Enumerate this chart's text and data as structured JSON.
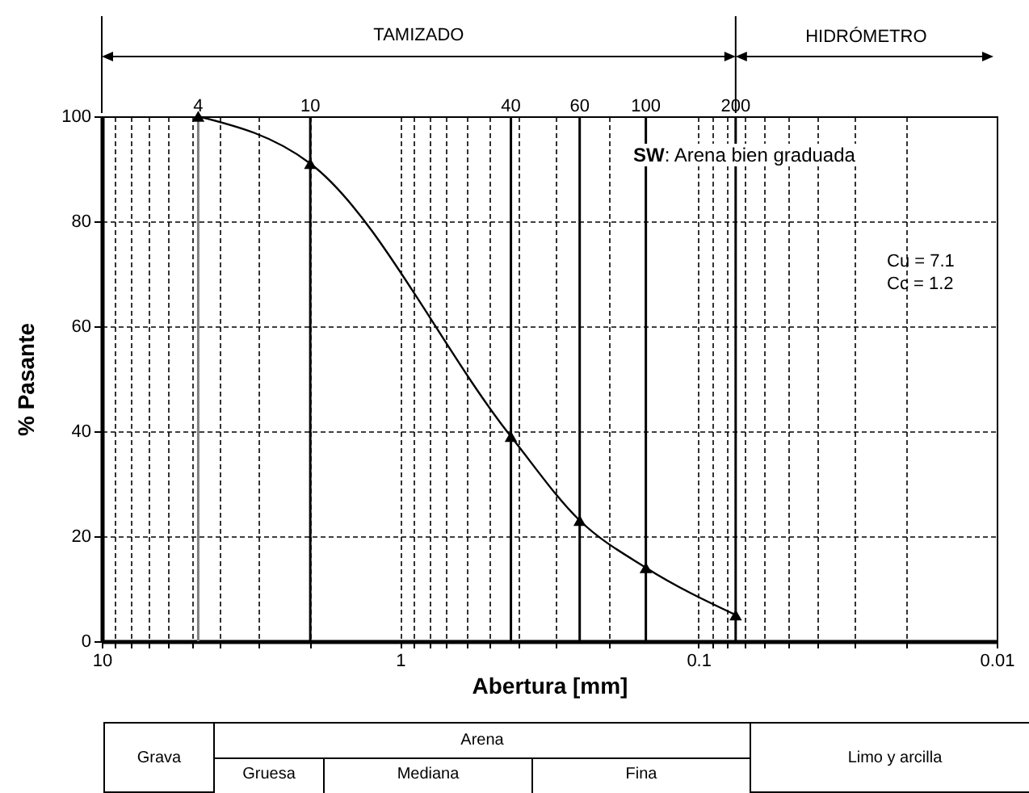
{
  "chart_data": {
    "type": "line",
    "xlabel": "Abertura [mm]",
    "ylabel": "% Pasante",
    "x": [
      4.75,
      2,
      0.425,
      0.25,
      0.15,
      0.075
    ],
    "series": [
      {
        "color": "#000000",
        "values": [
          100,
          91,
          39,
          23,
          14,
          5
        ]
      }
    ],
    "marker": "triangle",
    "line_style": "solid",
    "log": "x",
    "grid": true,
    "xlim": [
      10,
      0.01
    ],
    "xticks": [
      10,
      {
        "value": 9,
        "label": null
      },
      {
        "value": 8,
        "label": null
      },
      {
        "value": 7,
        "label": null
      },
      {
        "value": 6,
        "label": null
      },
      {
        "value": 5,
        "label": null
      },
      {
        "value": 4,
        "label": null
      },
      {
        "value": 3,
        "label": null
      },
      {
        "value": 2,
        "label": null
      },
      1,
      {
        "value": 0.9,
        "label": null
      },
      {
        "value": 0.8,
        "label": null
      },
      {
        "value": 0.7,
        "label": null
      },
      {
        "value": 0.6,
        "label": null
      },
      {
        "value": 0.5,
        "label": null
      },
      {
        "value": 0.4,
        "label": null
      },
      {
        "value": 0.3,
        "label": null
      },
      {
        "value": 0.2,
        "label": null
      },
      0.1,
      {
        "value": 0.09,
        "label": null
      },
      {
        "value": 0.08,
        "label": null
      },
      {
        "value": 0.07,
        "label": null
      },
      {
        "value": 0.06,
        "label": null
      },
      {
        "value": 0.05,
        "label": null
      },
      {
        "value": 0.04,
        "label": null
      },
      {
        "value": 0.03,
        "label": null
      },
      {
        "value": 0.02,
        "label": null
      },
      0.01
    ],
    "ylim": [
      0,
      100
    ],
    "yticks": [
      0,
      20,
      40,
      60,
      80,
      100
    ],
    "ref_lines": [
      {
        "axis": "x",
        "value": 4.75,
        "color": "#808080"
      },
      {
        "axis": "x",
        "value": 2,
        "color": "#000000"
      },
      {
        "axis": "x",
        "value": 0.425,
        "color": "#000000"
      },
      {
        "axis": "x",
        "value": 0.25,
        "color": "#000000"
      },
      {
        "axis": "x",
        "value": 0.15,
        "color": "#000000"
      },
      {
        "axis": "x",
        "value": 0.075,
        "color": "#000000"
      }
    ],
    "annotations": [
      {
        "text": "4",
        "x": 4.75,
        "y": 100
      },
      {
        "text": "10",
        "x": 2,
        "y": 100
      },
      {
        "text": "40",
        "x": 0.425,
        "y": 100
      },
      {
        "text": "60",
        "x": 0.25,
        "y": 100
      },
      {
        "text": "100",
        "x": 0.15,
        "y": 100
      },
      {
        "text": "200",
        "x": 0.075,
        "y": 100
      },
      "TAMIZADO",
      "HIDRÓMETRO",
      "SW: Arena bien graduada",
      "Cu = 7.1",
      "Cc = 1.2",
      "Grava",
      "Arena",
      "Gruesa",
      "Mediana",
      "Fina",
      "Limo y arcilla"
    ]
  }
}
